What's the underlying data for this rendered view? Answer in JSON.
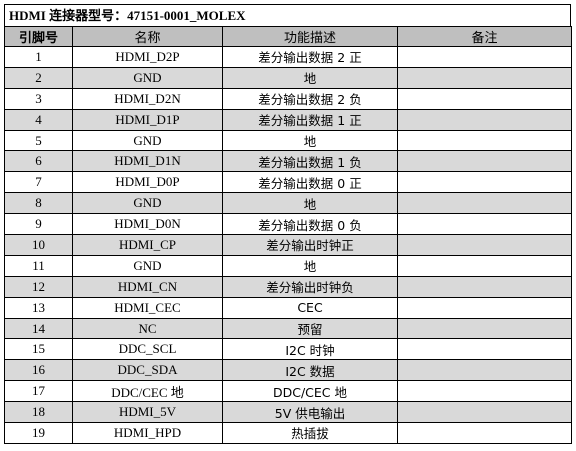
{
  "title": "HDMI 连接器型号：47151-0001_MOLEX",
  "headers": {
    "pin": "引脚号",
    "name": "名称",
    "function": "功能描述",
    "note": "备注"
  },
  "rows": [
    {
      "pin": "1",
      "name": "HDMI_D2P",
      "function": "差分输出数据 2 正",
      "note": ""
    },
    {
      "pin": "2",
      "name": "GND",
      "function": "地",
      "note": ""
    },
    {
      "pin": "3",
      "name": "HDMI_D2N",
      "function": "差分输出数据 2 负",
      "note": ""
    },
    {
      "pin": "4",
      "name": "HDMI_D1P",
      "function": "差分输出数据 1 正",
      "note": ""
    },
    {
      "pin": "5",
      "name": "GND",
      "function": "地",
      "note": ""
    },
    {
      "pin": "6",
      "name": "HDMI_D1N",
      "function": "差分输出数据 1 负",
      "note": ""
    },
    {
      "pin": "7",
      "name": "HDMI_D0P",
      "function": "差分输出数据 0 正",
      "note": ""
    },
    {
      "pin": "8",
      "name": "GND",
      "function": "地",
      "note": ""
    },
    {
      "pin": "9",
      "name": "HDMI_D0N",
      "function": "差分输出数据 0 负",
      "note": ""
    },
    {
      "pin": "10",
      "name": "HDMI_CP",
      "function": "差分输出时钟正",
      "note": ""
    },
    {
      "pin": "11",
      "name": "GND",
      "function": "地",
      "note": ""
    },
    {
      "pin": "12",
      "name": "HDMI_CN",
      "function": "差分输出时钟负",
      "note": ""
    },
    {
      "pin": "13",
      "name": "HDMI_CEC",
      "function": "CEC",
      "note": ""
    },
    {
      "pin": "14",
      "name": "NC",
      "function": "预留",
      "note": ""
    },
    {
      "pin": "15",
      "name": "DDC_SCL",
      "function": "I2C 时钟",
      "note": ""
    },
    {
      "pin": "16",
      "name": "DDC_SDA",
      "function": "I2C 数据",
      "note": ""
    },
    {
      "pin": "17",
      "name": "DDC/CEC 地",
      "function": "DDC/CEC 地",
      "note": ""
    },
    {
      "pin": "18",
      "name": "HDMI_5V",
      "function": "5V 供电输出",
      "note": ""
    },
    {
      "pin": "19",
      "name": "HDMI_HPD",
      "function": "热插拔",
      "note": ""
    }
  ],
  "colors": {
    "header_bg": "#bfbfbf",
    "stripe_bg": "#d9d9d9",
    "border": "#000000"
  }
}
